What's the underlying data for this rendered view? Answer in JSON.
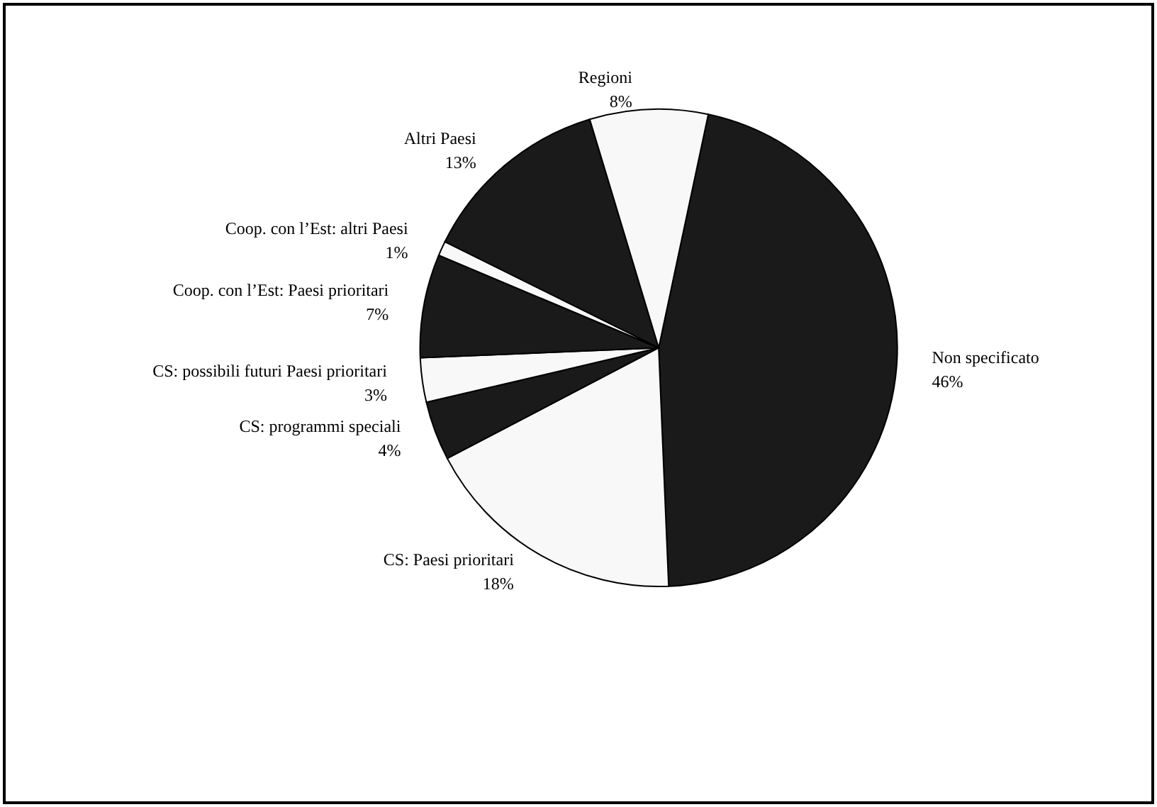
{
  "chart_data": {
    "type": "pie",
    "categories": [
      "Non specificato",
      "CS: Paesi prioritari",
      "CS: programmi speciali",
      "CS: possibili futuri Paesi prioritari",
      "Coop. con l’Est: Paesi prioritari",
      "Coop. con l’Est: altri Paesi",
      "Altri Paesi",
      "Regioni"
    ],
    "values": [
      46,
      18,
      4,
      3,
      7,
      1,
      13,
      8
    ],
    "value_labels": [
      "46%",
      "18%",
      "4%",
      "3%",
      "7%",
      "1%",
      "13%",
      "8%"
    ],
    "colors": [
      "#1a1a1a",
      "#f8f8f8",
      "#1a1a1a",
      "#f8f8f8",
      "#1a1a1a",
      "#f8f8f8",
      "#1a1a1a",
      "#f8f8f8"
    ],
    "legend": false
  }
}
